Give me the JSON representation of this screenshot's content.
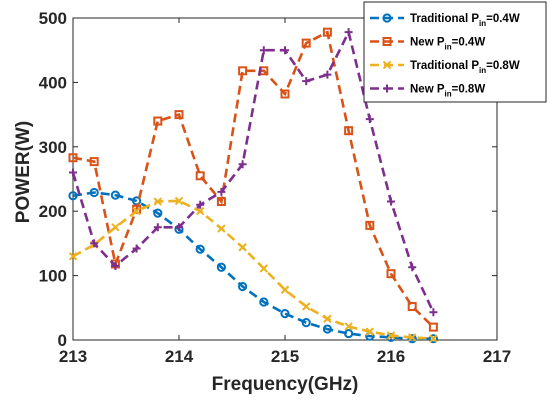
{
  "chart_data": {
    "type": "line",
    "xlabel": "Frequency(GHz)",
    "ylabel": "POWER(W)",
    "xlim": [
      213,
      217
    ],
    "ylim": [
      0,
      500
    ],
    "x_ticks": [
      "213",
      "214",
      "215",
      "216",
      "217"
    ],
    "y_ticks": [
      "0",
      "100",
      "200",
      "300",
      "400",
      "500"
    ],
    "grid": false,
    "legend_position": "top-right",
    "x": [
      213.0,
      213.2,
      213.4,
      213.6,
      213.8,
      214.0,
      214.2,
      214.4,
      214.6,
      214.8,
      215.0,
      215.2,
      215.4,
      215.6,
      215.8,
      216.0,
      216.2,
      216.4
    ],
    "series": [
      {
        "legend": {
          "prefix": "Traditional P",
          "sub": "in",
          "suffix": "=0.4W"
        },
        "color": "#0072BD",
        "marker": "circle",
        "values": [
          224,
          229,
          225,
          216,
          197,
          172,
          141,
          113,
          83,
          59,
          41,
          27,
          17,
          10,
          6,
          4,
          2,
          2
        ]
      },
      {
        "legend": {
          "prefix": "New P",
          "sub": "in",
          "suffix": "=0.4W"
        },
        "color": "#D95319",
        "marker": "square",
        "values": [
          283,
          277,
          118,
          203,
          340,
          350,
          255,
          215,
          418,
          418,
          382,
          461,
          478,
          325,
          178,
          103,
          52,
          20
        ]
      },
      {
        "legend": {
          "prefix": "Traditional P",
          "sub": "in",
          "suffix": "=0.8W"
        },
        "color": "#EDB120",
        "marker": "x",
        "values": [
          130,
          148,
          175,
          200,
          215,
          216,
          200,
          173,
          144,
          111,
          78,
          52,
          33,
          21,
          13,
          7,
          4,
          2
        ]
      },
      {
        "legend": {
          "prefix": "New P",
          "sub": "in",
          "suffix": "=0.8W"
        },
        "color": "#7E2F8E",
        "marker": "plus",
        "values": [
          260,
          150,
          115,
          142,
          175,
          175,
          210,
          230,
          273,
          450,
          450,
          402,
          412,
          478,
          343,
          215,
          113,
          43
        ]
      }
    ]
  }
}
